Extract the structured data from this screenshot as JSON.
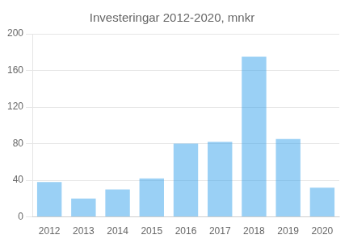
{
  "chart_data": {
    "type": "bar",
    "title": "Investeringar 2012-2020, mnkr",
    "categories": [
      "2012",
      "2013",
      "2014",
      "2015",
      "2016",
      "2017",
      "2018",
      "2019",
      "2020"
    ],
    "values": [
      38,
      20,
      30,
      42,
      80,
      82,
      175,
      85,
      32
    ],
    "ylim": [
      0,
      200
    ],
    "yticks": [
      0,
      40,
      80,
      120,
      160,
      200
    ],
    "grid": true
  }
}
